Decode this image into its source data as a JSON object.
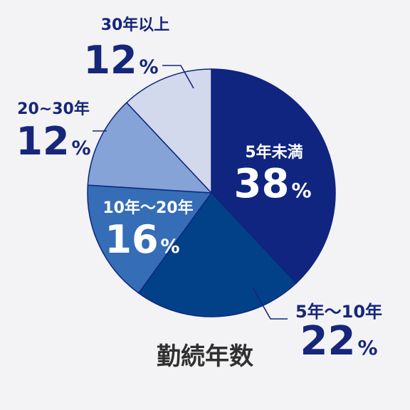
{
  "chart_data": {
    "type": "pie",
    "title": "勤続年数",
    "unit": "%",
    "start": "12 o'clock",
    "direction": "clockwise",
    "series": [
      {
        "name": "5年未満",
        "value": 38,
        "value_label": "38",
        "color": "#0f2580",
        "label_pos": "inside",
        "label_color": "#ffffff"
      },
      {
        "name": "5年～10年",
        "value": 22,
        "value_label": "22",
        "color": "#024188",
        "label_pos": "outside-bottom-right",
        "label_color": "#16267a"
      },
      {
        "name": "10年～20年",
        "value": 16,
        "value_label": "16",
        "color": "#356db6",
        "label_pos": "inside",
        "label_color": "#ffffff"
      },
      {
        "name": "20~30年",
        "value": 12,
        "value_label": "12",
        "color": "#85a3d6",
        "label_pos": "outside-left",
        "label_color": "#16267a"
      },
      {
        "name": "30年以上",
        "value": 12,
        "value_label": "12",
        "color": "#d2d9ec",
        "label_pos": "outside-top-left",
        "label_color": "#16267a"
      }
    ]
  },
  "colors": {
    "background": "#f3f3f5",
    "title": "#303030",
    "leader": "#16267a",
    "slice_border": "#0f2580"
  }
}
